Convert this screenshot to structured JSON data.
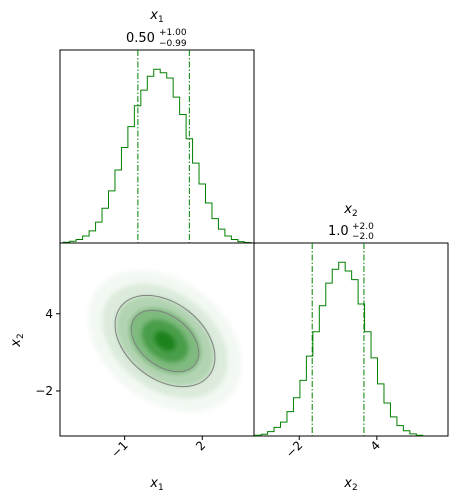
{
  "colors": {
    "accent": "#008000",
    "contour": "#808080",
    "axis": "#000000",
    "background": "#ffffff"
  },
  "chart_data": [
    {
      "type": "histogram",
      "panel": "top-left",
      "title": {
        "param": "x",
        "sub": "1",
        "median": "0.50",
        "upper": "+1.00",
        "lower": "−0.99"
      },
      "xlim": [
        -3.5,
        4.0
      ],
      "quantile_lines": [
        -0.49,
        1.5
      ],
      "bins": [
        -3.25,
        -3.0,
        -2.75,
        -2.5,
        -2.25,
        -2.0,
        -1.75,
        -1.5,
        -1.25,
        -1.0,
        -0.75,
        -0.5,
        -0.25,
        0.0,
        0.25,
        0.5,
        0.75,
        1.0,
        1.25,
        1.5,
        1.75,
        2.0,
        2.25,
        2.5,
        2.75,
        3.0,
        3.25,
        3.5,
        3.75
      ],
      "counts": [
        0.004,
        0.01,
        0.02,
        0.04,
        0.07,
        0.12,
        0.2,
        0.3,
        0.42,
        0.55,
        0.67,
        0.79,
        0.88,
        0.96,
        1.0,
        0.98,
        0.95,
        0.84,
        0.74,
        0.6,
        0.46,
        0.34,
        0.23,
        0.14,
        0.08,
        0.04,
        0.02,
        0.008,
        0.003
      ],
      "ticks": [],
      "ylabel": "",
      "xlabel": ""
    },
    {
      "type": "histogram",
      "panel": "bottom-right",
      "title": {
        "param": "x",
        "sub": "2",
        "median": "1.0",
        "upper": "+2.0",
        "lower": "−2.0"
      },
      "xlim": [
        -5.5,
        9.5
      ],
      "quantile_lines": [
        -1.0,
        3.0
      ],
      "bins": [
        -5.2,
        -4.7,
        -4.2,
        -3.7,
        -3.2,
        -2.7,
        -2.2,
        -1.7,
        -1.2,
        -0.7,
        -0.2,
        0.3,
        0.8,
        1.3,
        1.8,
        2.3,
        2.8,
        3.3,
        3.8,
        4.3,
        4.8,
        5.3,
        5.8,
        6.3,
        6.8,
        7.3
      ],
      "counts": [
        0.004,
        0.01,
        0.025,
        0.05,
        0.08,
        0.14,
        0.22,
        0.32,
        0.46,
        0.6,
        0.75,
        0.88,
        0.96,
        1.0,
        0.95,
        0.9,
        0.76,
        0.6,
        0.45,
        0.3,
        0.19,
        0.11,
        0.06,
        0.03,
        0.012,
        0.004
      ],
      "ticks": [
        {
          "value": -2,
          "label": "−2"
        },
        {
          "value": 4,
          "label": "4"
        }
      ],
      "xlabel": {
        "param": "x",
        "sub": "2"
      }
    },
    {
      "type": "scatter_density",
      "panel": "bottom-left",
      "xlim": [
        -3.5,
        4.0
      ],
      "ylim": [
        -5.5,
        9.5
      ],
      "center": [
        0.5,
        1.0
      ],
      "x_ticks": [
        {
          "value": -1,
          "label": "−1"
        },
        {
          "value": 2,
          "label": "2"
        }
      ],
      "y_ticks": [
        {
          "value": -2,
          "label": "−2"
        },
        {
          "value": 4,
          "label": "4"
        }
      ],
      "xlabel": {
        "param": "x",
        "sub": "1"
      },
      "ylabel": {
        "param": "x",
        "sub": "2"
      }
    }
  ]
}
